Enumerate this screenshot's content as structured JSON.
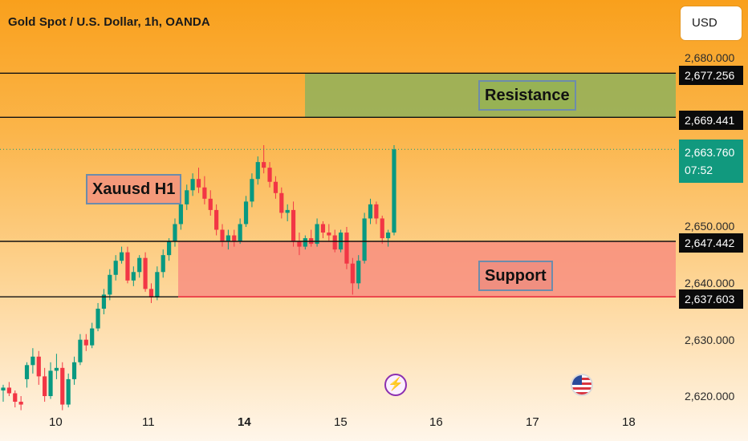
{
  "header": {
    "title": "Gold Spot / U.S. Dollar, 1h, OANDA",
    "currency": "USD"
  },
  "labels": {
    "resistance": "Resistance",
    "support": "Support",
    "instrument": "Xauusd H1"
  },
  "price_axis": {
    "ticks": [
      "2,680.000",
      "2,650.000",
      "2,640.000",
      "2,630.000",
      "2,620.000"
    ]
  },
  "price_tags": {
    "resistance_top": "2,677.256",
    "resistance_bottom": "2,669.441",
    "support_top": "2,647.442",
    "support_bottom": "2,637.603",
    "current_price": "2,663.760",
    "countdown": "07:52"
  },
  "time_axis": {
    "labels": [
      "10",
      "11",
      "14",
      "15",
      "16",
      "17",
      "18"
    ]
  },
  "events": {
    "lightning": "lightning-icon",
    "us_flag": "us-flag-icon"
  },
  "colors": {
    "bullish": "#089981",
    "bearish": "#f23645",
    "resistance_zone": "#8fb25c",
    "support_zone": "#f7867e",
    "current_price": "#11997e"
  },
  "chart_data": {
    "type": "candlestick",
    "symbol": "Gold Spot / U.S. Dollar",
    "timeframe": "1h",
    "ylim": [
      2617,
      2683
    ],
    "x_labels": [
      "10",
      "11",
      "14",
      "15",
      "16",
      "17",
      "18"
    ],
    "resistance_zone": [
      2669.441,
      2677.256
    ],
    "support_zone": [
      2637.603,
      2647.442
    ],
    "last_price": 2663.76,
    "candles": [
      [
        2621.0,
        2622.0,
        2619.0,
        2621.5
      ],
      [
        2621.5,
        2622.5,
        2620.0,
        2620.5
      ],
      [
        2620.5,
        2621.0,
        2618.0,
        2619.0
      ],
      [
        2619.0,
        2620.0,
        2617.5,
        2618.5
      ],
      [
        2623.0,
        2626.0,
        2621.5,
        2625.5
      ],
      [
        2625.5,
        2628.5,
        2624.0,
        2627.0
      ],
      [
        2627.0,
        2628.0,
        2622.0,
        2623.5
      ],
      [
        2623.5,
        2625.0,
        2619.0,
        2620.0
      ],
      [
        2620.0,
        2626.0,
        2619.5,
        2624.5
      ],
      [
        2624.5,
        2627.5,
        2623.0,
        2625.0
      ],
      [
        2625.0,
        2626.0,
        2617.5,
        2618.5
      ],
      [
        2618.5,
        2624.0,
        2618.0,
        2623.0
      ],
      [
        2623.0,
        2627.0,
        2622.0,
        2626.0
      ],
      [
        2626.0,
        2631.0,
        2625.5,
        2630.0
      ],
      [
        2630.0,
        2631.0,
        2628.0,
        2629.0
      ],
      [
        2629.0,
        2633.0,
        2628.5,
        2632.0
      ],
      [
        2632.0,
        2636.5,
        2631.5,
        2635.5
      ],
      [
        2635.5,
        2639.0,
        2634.5,
        2638.0
      ],
      [
        2638.0,
        2642.5,
        2637.0,
        2641.5
      ],
      [
        2641.5,
        2645.0,
        2640.5,
        2644.0
      ],
      [
        2644.0,
        2646.5,
        2643.5,
        2645.5
      ],
      [
        2645.5,
        2646.5,
        2640.0,
        2640.5
      ],
      [
        2640.5,
        2643.0,
        2639.5,
        2642.0
      ],
      [
        2642.0,
        2645.0,
        2641.0,
        2644.5
      ],
      [
        2644.5,
        2645.5,
        2638.5,
        2639.0
      ],
      [
        2639.0,
        2640.0,
        2636.5,
        2637.5
      ],
      [
        2637.5,
        2643.0,
        2637.0,
        2642.0
      ],
      [
        2642.0,
        2646.0,
        2641.0,
        2645.0
      ],
      [
        2645.0,
        2648.0,
        2644.0,
        2647.5
      ],
      [
        2647.5,
        2651.5,
        2646.5,
        2650.5
      ],
      [
        2650.5,
        2655.0,
        2649.5,
        2654.0
      ],
      [
        2654.0,
        2657.5,
        2653.0,
        2656.5
      ],
      [
        2656.5,
        2659.5,
        2655.5,
        2658.5
      ],
      [
        2658.5,
        2660.5,
        2656.0,
        2657.0
      ],
      [
        2657.0,
        2659.0,
        2654.0,
        2655.0
      ],
      [
        2655.0,
        2656.5,
        2652.0,
        2653.0
      ],
      [
        2653.0,
        2654.0,
        2648.5,
        2649.5
      ],
      [
        2649.5,
        2650.5,
        2646.5,
        2647.5
      ],
      [
        2647.5,
        2649.5,
        2646.0,
        2648.5
      ],
      [
        2648.5,
        2649.5,
        2646.5,
        2647.5
      ],
      [
        2647.5,
        2651.5,
        2647.0,
        2650.5
      ],
      [
        2650.5,
        2655.5,
        2650.0,
        2654.5
      ],
      [
        2654.5,
        2659.5,
        2653.5,
        2658.5
      ],
      [
        2658.5,
        2662.5,
        2657.5,
        2661.5
      ],
      [
        2661.5,
        2664.5,
        2659.5,
        2660.5
      ],
      [
        2660.5,
        2661.5,
        2657.0,
        2658.0
      ],
      [
        2658.0,
        2659.0,
        2655.0,
        2656.0
      ],
      [
        2656.0,
        2657.0,
        2651.5,
        2652.5
      ],
      [
        2652.5,
        2654.0,
        2651.0,
        2653.0
      ],
      [
        2653.0,
        2654.5,
        2646.5,
        2647.5
      ],
      [
        2647.5,
        2649.0,
        2645.0,
        2646.5
      ],
      [
        2646.5,
        2648.5,
        2646.0,
        2648.0
      ],
      [
        2648.0,
        2649.5,
        2646.5,
        2647.0
      ],
      [
        2647.0,
        2651.5,
        2646.5,
        2650.5
      ],
      [
        2650.5,
        2651.0,
        2648.0,
        2649.0
      ],
      [
        2649.0,
        2650.5,
        2647.5,
        2648.5
      ],
      [
        2648.5,
        2649.5,
        2645.5,
        2646.0
      ],
      [
        2646.0,
        2649.5,
        2645.5,
        2649.0
      ],
      [
        2649.0,
        2650.0,
        2642.5,
        2643.5
      ],
      [
        2643.5,
        2644.5,
        2638.0,
        2640.0
      ],
      [
        2640.0,
        2645.0,
        2639.0,
        2644.0
      ],
      [
        2644.0,
        2652.5,
        2643.5,
        2651.5
      ],
      [
        2651.5,
        2655.0,
        2650.5,
        2654.0
      ],
      [
        2654.0,
        2654.5,
        2650.5,
        2651.5
      ],
      [
        2651.5,
        2652.0,
        2647.0,
        2648.0
      ],
      [
        2648.0,
        2649.5,
        2646.5,
        2649.0
      ],
      [
        2649.0,
        2664.5,
        2648.5,
        2663.76
      ]
    ]
  }
}
